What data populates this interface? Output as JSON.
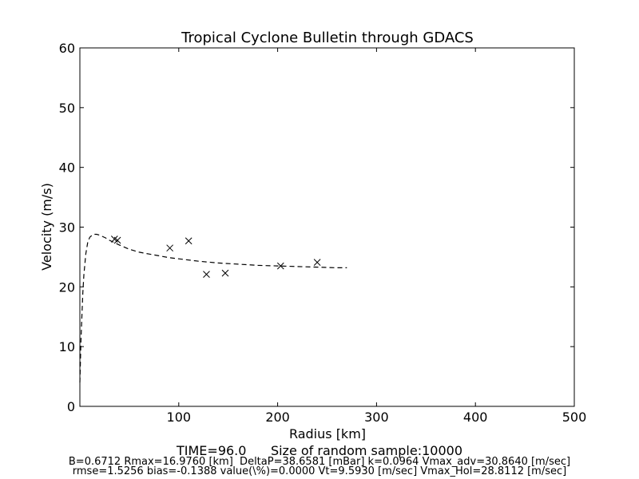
{
  "chart_data": {
    "type": "scatter",
    "title": "Tropical Cyclone Bulletin through GDACS",
    "xlabel": "Radius [km]",
    "ylabel": "Velocity (m/s)",
    "xlim": [
      0,
      500
    ],
    "ylim": [
      0,
      60
    ],
    "x_ticks": [
      "100",
      "200",
      "300",
      "400",
      "500"
    ],
    "y_ticks": [
      "0",
      "10",
      "20",
      "30",
      "40",
      "50",
      "60"
    ],
    "grid": false,
    "series": [
      {
        "style": "dashed-line",
        "x": [
          0,
          0.5,
          1,
          2,
          3,
          4,
          6,
          8,
          10,
          12,
          14,
          16,
          17,
          19,
          22,
          26,
          30,
          35,
          40,
          50,
          60,
          70,
          80,
          90,
          100,
          120,
          140,
          160,
          180,
          200,
          220,
          240,
          260,
          270
        ],
        "y": [
          4,
          7,
          10.5,
          15,
          19,
          22,
          25.5,
          27.5,
          28.3,
          28.6,
          28.8,
          28.8,
          28.8,
          28.7,
          28.5,
          28.2,
          27.8,
          27.4,
          27.0,
          26.3,
          25.8,
          25.5,
          25.2,
          24.9,
          24.7,
          24.3,
          24.0,
          23.8,
          23.6,
          23.5,
          23.4,
          23.3,
          23.2,
          23.2
        ]
      },
      {
        "style": "x-markers",
        "x": [
          35,
          38,
          91,
          110,
          128,
          147,
          203,
          240
        ],
        "y": [
          28.0,
          27.8,
          26.5,
          27.7,
          22.1,
          22.3,
          23.5,
          24.1
        ]
      }
    ]
  },
  "footer": {
    "time_line": "TIME=96.0      Size of random sample:10000",
    "params_line1": "B=0.6712 Rmax=16.9760 [km]  DeltaP=38.6581 [mBar] k=0.0964 Vmax_adv=30.8640 [m/sec]",
    "params_line2": "rmse=1.5256 bias=-0.1388 value(\\%)=0.0000 Vt=9.5930 [m/sec] Vmax_Hol=28.8112 [m/sec]"
  }
}
